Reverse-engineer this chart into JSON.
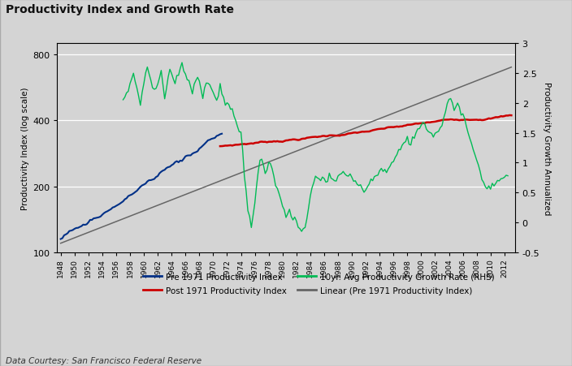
{
  "title": "Productivity Index and Growth Rate",
  "ylabel_left": "Productivity Index (log scale)",
  "ylabel_right": "Productivity Growth Annualized",
  "footnote": "Data Courtesy: San Francisco Federal Reserve",
  "bg_color": "#d4d4d4",
  "pre1971_color": "#003087",
  "post1971_color": "#CC0000",
  "growth_color": "#00BB55",
  "linear_color": "#666666",
  "legend_items": [
    "Pre 1971 Productivity Index",
    "Post 1971 Productivity Index",
    "10yr. Avg Productivity Growth Rate (RHS)",
    "Linear (Pre 1971 Productivity Index)"
  ],
  "yticks_left": [
    100,
    200,
    400,
    800
  ],
  "yticks_right": [
    -0.5,
    0,
    0.5,
    1.0,
    1.5,
    2.0,
    2.5,
    3.0
  ],
  "ylim_left": [
    100,
    900
  ],
  "ylim_right": [
    -0.5,
    3.0
  ],
  "xlim": [
    1947.5,
    2013.5
  ],
  "xtick_step": 2,
  "xtick_start": 1948,
  "xtick_end": 2013
}
